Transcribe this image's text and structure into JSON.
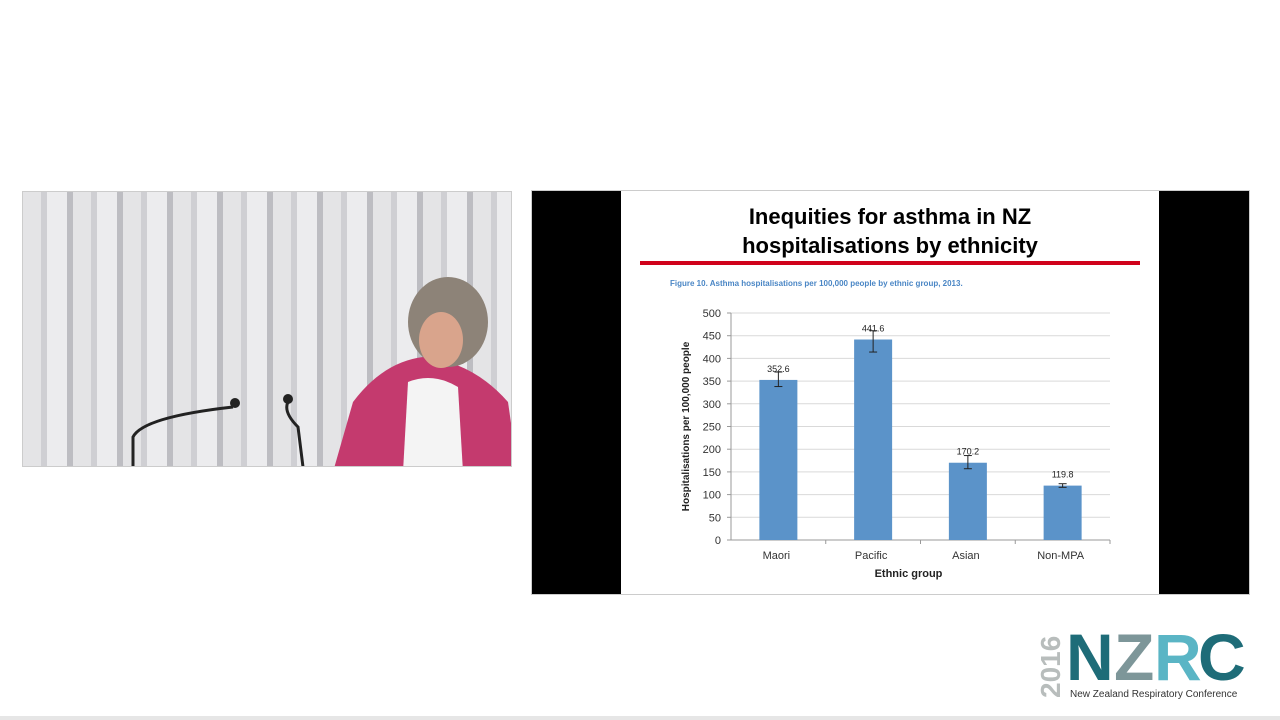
{
  "slide": {
    "title_line1": "Inequities for asthma in NZ",
    "title_line2": "hospitalisations by ethnicity",
    "figure_caption": "Figure 10.   Asthma hospitalisations per 100,000 people by ethnic group, 2013."
  },
  "logo": {
    "year": "2016",
    "acronym": "NZRC",
    "name": "New Zealand Respiratory Conference"
  },
  "colors": {
    "bar": "#5b93c9",
    "rule": "#d0021b",
    "caption": "#4a86c5"
  },
  "chart_data": {
    "type": "bar",
    "categories": [
      "Maori",
      "Pacific",
      "Asian",
      "Non-MPA"
    ],
    "values": [
      352.6,
      441.6,
      170.2,
      119.8
    ],
    "data_labels": [
      "352.6",
      "441.6",
      "170.2",
      "119.8"
    ],
    "error_bars": [
      [
        338,
        370
      ],
      [
        414,
        461
      ],
      [
        157,
        186
      ],
      [
        116,
        124
      ]
    ],
    "title": "Figure 10.   Asthma hospitalisations per 100,000 people by ethnic group, 2013.",
    "xlabel": "Ethnic group",
    "ylabel": "Hospitalisations per 100,000 people",
    "ylim": [
      0,
      500
    ],
    "yticks": [
      0,
      50,
      100,
      150,
      200,
      250,
      300,
      350,
      400,
      450,
      500
    ],
    "grid": true,
    "legend": "none"
  }
}
